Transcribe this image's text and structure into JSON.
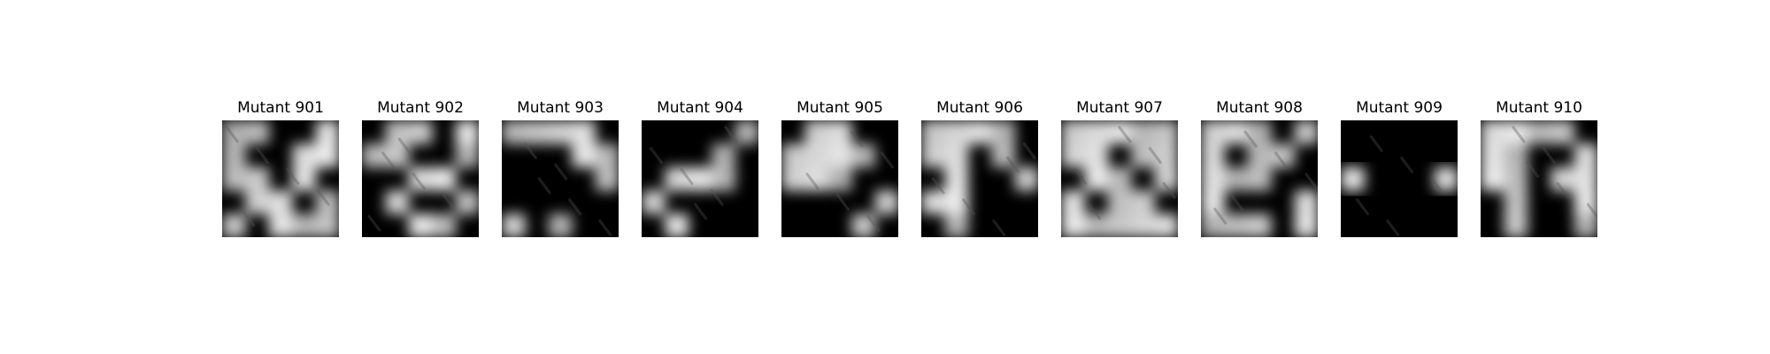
{
  "figure": {
    "panels": [
      {
        "title": "Mutant 901",
        "mask": [
          [
            1,
            1,
            0,
            0,
            1
          ],
          [
            1,
            0,
            0,
            1,
            1
          ],
          [
            1,
            1,
            0,
            1,
            0
          ],
          [
            0,
            1,
            1,
            0,
            1
          ],
          [
            1,
            0,
            1,
            1,
            1
          ]
        ]
      },
      {
        "title": "Mutant 902",
        "mask": [
          [
            0,
            1,
            1,
            0,
            1
          ],
          [
            1,
            1,
            0,
            0,
            1
          ],
          [
            0,
            0,
            1,
            1,
            0
          ],
          [
            0,
            1,
            0,
            0,
            1
          ],
          [
            0,
            0,
            1,
            1,
            0
          ]
        ]
      },
      {
        "title": "Mutant 903",
        "mask": [
          [
            1,
            1,
            1,
            1,
            0
          ],
          [
            0,
            0,
            0,
            1,
            1
          ],
          [
            0,
            0,
            0,
            0,
            1
          ],
          [
            0,
            0,
            0,
            0,
            0
          ],
          [
            1,
            0,
            1,
            0,
            0
          ]
        ]
      },
      {
        "title": "Mutant 904",
        "mask": [
          [
            0,
            0,
            0,
            0,
            1
          ],
          [
            0,
            0,
            0,
            1,
            0
          ],
          [
            0,
            1,
            1,
            1,
            0
          ],
          [
            1,
            0,
            0,
            0,
            0
          ],
          [
            0,
            1,
            0,
            0,
            0
          ]
        ]
      },
      {
        "title": "Mutant 905",
        "mask": [
          [
            0,
            1,
            1,
            0,
            0
          ],
          [
            1,
            1,
            1,
            1,
            0
          ],
          [
            1,
            1,
            1,
            0,
            0
          ],
          [
            0,
            0,
            0,
            0,
            1
          ],
          [
            0,
            0,
            0,
            1,
            0
          ]
        ]
      },
      {
        "title": "Mutant 906",
        "mask": [
          [
            1,
            1,
            1,
            1,
            0
          ],
          [
            1,
            1,
            0,
            1,
            0
          ],
          [
            0,
            1,
            0,
            0,
            1
          ],
          [
            1,
            1,
            0,
            0,
            0
          ],
          [
            0,
            1,
            0,
            0,
            0
          ]
        ]
      },
      {
        "title": "Mutant 907",
        "mask": [
          [
            1,
            1,
            1,
            1,
            1
          ],
          [
            1,
            1,
            0,
            1,
            1
          ],
          [
            0,
            1,
            1,
            0,
            1
          ],
          [
            1,
            0,
            1,
            1,
            0
          ],
          [
            1,
            1,
            1,
            1,
            1
          ]
        ]
      },
      {
        "title": "Mutant 908",
        "mask": [
          [
            1,
            1,
            1,
            0,
            1
          ],
          [
            1,
            0,
            1,
            1,
            0
          ],
          [
            1,
            1,
            1,
            0,
            0
          ],
          [
            1,
            0,
            0,
            0,
            1
          ],
          [
            1,
            1,
            1,
            0,
            1
          ]
        ]
      },
      {
        "title": "Mutant 909",
        "mask": [
          [
            0,
            0,
            0,
            0,
            0
          ],
          [
            0,
            0,
            0,
            0,
            0
          ],
          [
            1,
            0,
            0,
            0,
            1
          ],
          [
            0,
            0,
            0,
            0,
            0
          ],
          [
            0,
            0,
            0,
            0,
            0
          ]
        ]
      },
      {
        "title": "Mutant 910",
        "mask": [
          [
            1,
            1,
            1,
            1,
            0
          ],
          [
            1,
            1,
            0,
            0,
            1
          ],
          [
            1,
            1,
            0,
            1,
            1
          ],
          [
            0,
            1,
            0,
            0,
            1
          ],
          [
            0,
            1,
            0,
            0,
            1
          ]
        ]
      }
    ]
  }
}
